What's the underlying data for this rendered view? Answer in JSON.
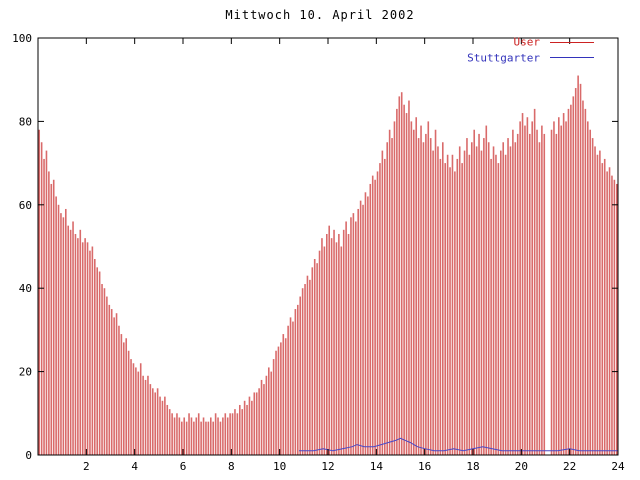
{
  "chart_data": {
    "type": "bar",
    "title": "Mittwoch 10. April 2002",
    "xlabel": "",
    "ylabel": "",
    "xlim": [
      0,
      24
    ],
    "ylim": [
      0,
      100
    ],
    "x_ticks": [
      2,
      4,
      6,
      8,
      10,
      12,
      14,
      16,
      18,
      20,
      22,
      24
    ],
    "y_ticks": [
      0,
      20,
      40,
      60,
      80,
      100
    ],
    "grid": false,
    "legend_position": "top-right",
    "bar_step_hours": 0.1,
    "series": [
      {
        "name": "User",
        "type": "bars",
        "color": "#d96a6a",
        "legend_color": "#cc2222",
        "values": [
          78,
          75,
          71,
          73,
          68,
          65,
          66,
          62,
          60,
          58,
          57,
          59,
          55,
          54,
          56,
          53,
          52,
          54,
          51,
          52,
          51,
          49,
          50,
          47,
          45,
          44,
          41,
          40,
          38,
          36,
          35,
          33,
          34,
          31,
          29,
          27,
          28,
          25,
          23,
          22,
          21,
          20,
          22,
          19,
          18,
          19,
          17,
          16,
          15,
          16,
          14,
          13,
          14,
          12,
          11,
          10,
          9,
          10,
          9,
          8,
          9,
          8,
          10,
          9,
          8,
          9,
          10,
          8,
          9,
          8,
          8,
          9,
          8,
          10,
          9,
          8,
          9,
          10,
          9,
          10,
          10,
          11,
          10,
          12,
          11,
          13,
          12,
          14,
          13,
          15,
          15,
          16,
          18,
          17,
          19,
          21,
          20,
          23,
          25,
          26,
          27,
          29,
          28,
          31,
          33,
          32,
          35,
          36,
          38,
          40,
          41,
          43,
          42,
          45,
          47,
          46,
          49,
          52,
          50,
          53,
          55,
          52,
          54,
          51,
          53,
          50,
          54,
          56,
          53,
          57,
          58,
          56,
          59,
          61,
          60,
          63,
          62,
          65,
          67,
          66,
          68,
          70,
          73,
          71,
          75,
          78,
          76,
          80,
          83,
          86,
          87,
          84,
          82,
          85,
          80,
          78,
          81,
          76,
          79,
          75,
          77,
          80,
          76,
          73,
          78,
          74,
          71,
          75,
          70,
          72,
          69,
          72,
          68,
          71,
          74,
          70,
          73,
          76,
          72,
          75,
          78,
          74,
          77,
          73,
          76,
          79,
          75,
          71,
          74,
          72,
          70,
          73,
          75,
          72,
          76,
          74,
          78,
          75,
          77,
          80,
          82,
          79,
          81,
          77,
          80,
          83,
          78,
          75,
          79,
          77,
          0,
          0,
          78,
          80,
          77,
          81,
          79,
          82,
          80,
          83,
          84,
          86,
          88,
          91,
          89,
          85,
          83,
          80,
          78,
          76,
          74,
          72,
          73,
          70,
          71,
          68,
          69,
          67,
          66,
          65
        ]
      },
      {
        "name": "Stuttgarter",
        "type": "line",
        "color": "#4848c8",
        "legend_color": "#3333bb",
        "points": [
          [
            10.8,
            1
          ],
          [
            11.0,
            1
          ],
          [
            11.4,
            1
          ],
          [
            11.8,
            1.5
          ],
          [
            12.2,
            1
          ],
          [
            12.6,
            1.5
          ],
          [
            13.0,
            2
          ],
          [
            13.2,
            2.5
          ],
          [
            13.5,
            2
          ],
          [
            13.9,
            2
          ],
          [
            14.2,
            2.5
          ],
          [
            14.5,
            3
          ],
          [
            14.8,
            3.5
          ],
          [
            15.0,
            4
          ],
          [
            15.2,
            3.5
          ],
          [
            15.4,
            3
          ],
          [
            15.7,
            2
          ],
          [
            16.0,
            1.5
          ],
          [
            16.4,
            1
          ],
          [
            16.8,
            1
          ],
          [
            17.2,
            1.5
          ],
          [
            17.6,
            1
          ],
          [
            18.0,
            1.5
          ],
          [
            18.4,
            2
          ],
          [
            18.8,
            1.5
          ],
          [
            19.2,
            1
          ],
          [
            19.6,
            1
          ],
          [
            20.0,
            1
          ],
          [
            20.5,
            1
          ],
          [
            21.0,
            1
          ],
          [
            21.5,
            1
          ],
          [
            22.0,
            1.5
          ],
          [
            22.4,
            1
          ],
          [
            22.8,
            1
          ],
          [
            23.2,
            1
          ],
          [
            23.6,
            1
          ],
          [
            24.0,
            1
          ]
        ]
      }
    ]
  },
  "colors": {
    "frame": "#000000",
    "text": "#000000",
    "background": "#ffffff"
  }
}
